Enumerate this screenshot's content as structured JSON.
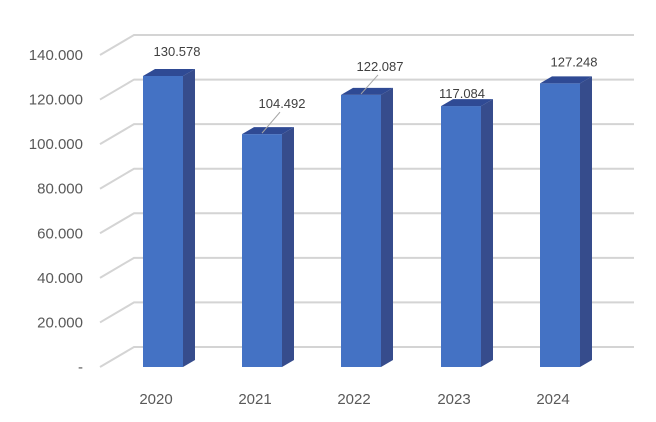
{
  "chart_data": {
    "type": "bar",
    "style": "3d-column",
    "categories": [
      "2020",
      "2021",
      "2022",
      "2023",
      "2024"
    ],
    "series": [
      {
        "values": [
          130.578,
          104.492,
          122.087,
          117.084,
          127.248
        ],
        "labels": [
          "130.578",
          "104.492",
          "122.087",
          "117.084",
          "127.248"
        ]
      }
    ],
    "ylim": [
      0,
      140
    ],
    "yticks": [
      0,
      20,
      40,
      60,
      80,
      100,
      120,
      140
    ],
    "ytick_labels": [
      "-",
      "20.000",
      "40.000",
      "60.000",
      "80.000",
      "100.000",
      "120.000",
      "140.000"
    ],
    "grid": true,
    "legend": "none",
    "title": "",
    "xlabel": "",
    "ylabel": ""
  },
  "colors": {
    "bar_front": "#4472C4",
    "bar_side": "#364C8C",
    "bar_top": "#2F4A94",
    "grid": "#D4D4D4",
    "text": "#595959"
  }
}
